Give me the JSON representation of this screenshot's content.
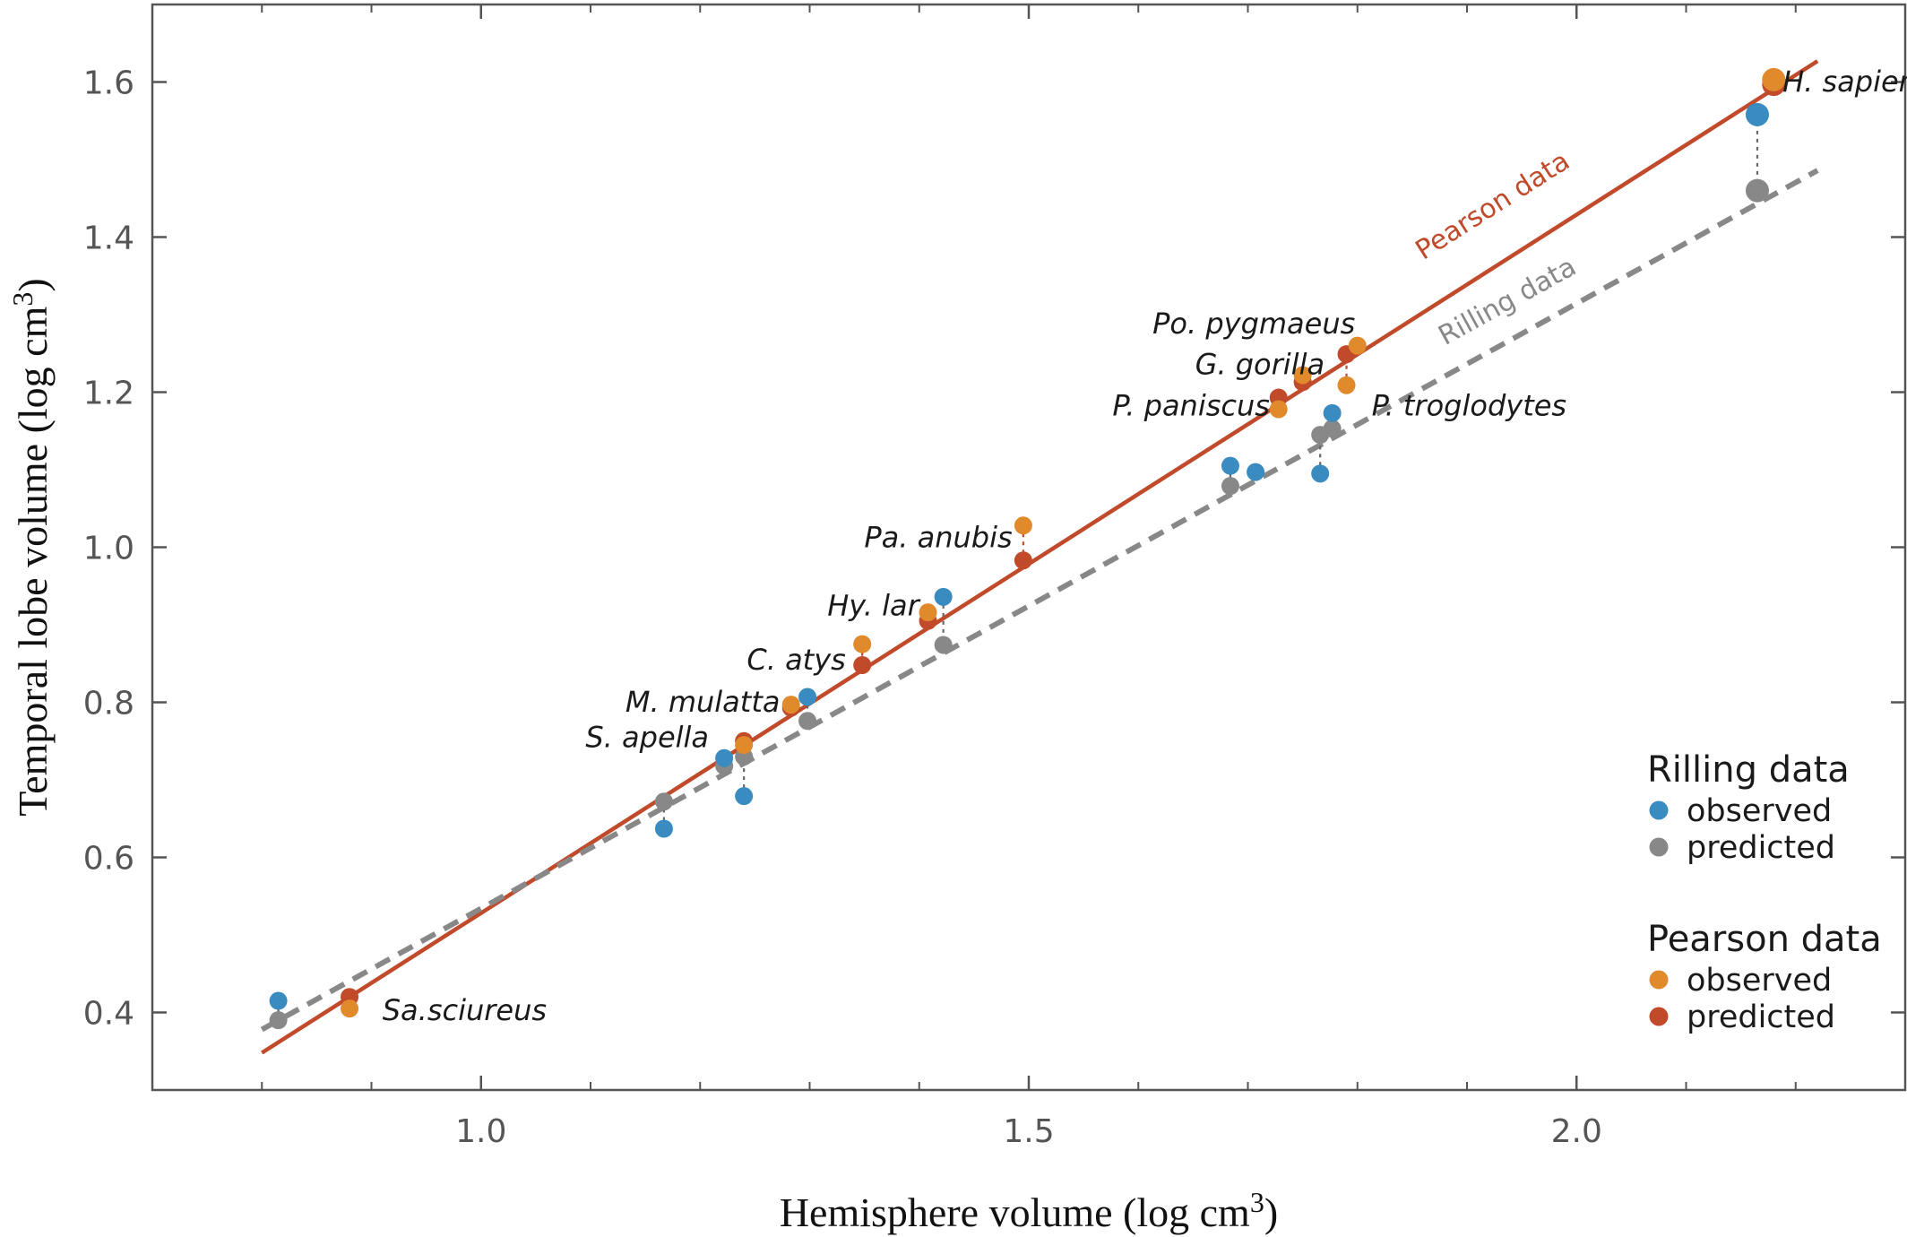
{
  "chart_data": {
    "type": "scatter",
    "xlabel": "Hemisphere volume (log cm",
    "xlabel_sup": "3",
    "xlabel_tail": ")",
    "ylabel": "Temporal lobe volume (log cm",
    "ylabel_sup": "3",
    "ylabel_tail": ")",
    "xlim": [
      0.7,
      2.3
    ],
    "ylim": [
      0.3,
      1.7
    ],
    "x_ticks": [
      {
        "value": 1.0,
        "label": "1.0"
      },
      {
        "value": 1.5,
        "label": "1.5"
      },
      {
        "value": 2.0,
        "label": "2.0"
      }
    ],
    "y_ticks": [
      {
        "value": 0.4,
        "label": "0.4"
      },
      {
        "value": 0.6,
        "label": "0.6"
      },
      {
        "value": 0.8,
        "label": "0.8"
      },
      {
        "value": 1.0,
        "label": "1.0"
      },
      {
        "value": 1.2,
        "label": "1.2"
      },
      {
        "value": 1.4,
        "label": "1.4"
      },
      {
        "value": 1.6,
        "label": "1.6"
      }
    ],
    "minor_x_ticks": [
      0.8,
      0.9,
      1.1,
      1.2,
      1.3,
      1.4,
      1.6,
      1.7,
      1.8,
      1.9,
      2.1,
      2.2
    ],
    "colors": {
      "rilling_observed": "#3a8cc0",
      "rilling_predicted": "#888888",
      "pearson_observed": "#e08a2c",
      "pearson_predicted": "#c04a2a",
      "pearson_line": "#c04a2a",
      "rilling_line": "#888888"
    },
    "fit_lines": [
      {
        "label": "Pearson data",
        "style": "solid",
        "color": "#c04a2a",
        "x": [
          0.8,
          2.22
        ],
        "y": [
          0.348,
          1.627
        ]
      },
      {
        "label": "Rilling data",
        "style": "dashed",
        "color": "#888888",
        "x": [
          0.8,
          2.22
        ],
        "y": [
          0.378,
          1.486
        ]
      }
    ],
    "series": [
      {
        "name": "observed",
        "group": "Rilling data",
        "color": "#3a8cc0",
        "points": [
          {
            "x": 0.815,
            "y": 0.415
          },
          {
            "x": 1.167,
            "y": 0.637
          },
          {
            "x": 1.222,
            "y": 0.728
          },
          {
            "x": 1.24,
            "y": 0.679
          },
          {
            "x": 1.298,
            "y": 0.807
          },
          {
            "x": 1.422,
            "y": 0.936
          },
          {
            "x": 1.684,
            "y": 1.105
          },
          {
            "x": 1.707,
            "y": 1.097
          },
          {
            "x": 1.766,
            "y": 1.095
          },
          {
            "x": 1.777,
            "y": 1.173
          },
          {
            "x": 2.165,
            "y": 1.558
          }
        ]
      },
      {
        "name": "predicted",
        "group": "Rilling data",
        "color": "#888888",
        "points": [
          {
            "x": 0.815,
            "y": 0.39
          },
          {
            "x": 1.167,
            "y": 0.672
          },
          {
            "x": 1.222,
            "y": 0.718
          },
          {
            "x": 1.24,
            "y": 0.73
          },
          {
            "x": 1.298,
            "y": 0.776
          },
          {
            "x": 1.422,
            "y": 0.874
          },
          {
            "x": 1.684,
            "y": 1.079
          },
          {
            "x": 1.766,
            "y": 1.145
          },
          {
            "x": 1.777,
            "y": 1.153
          },
          {
            "x": 2.165,
            "y": 1.46
          }
        ]
      },
      {
        "name": "observed",
        "group": "Pearson data",
        "color": "#e08a2c",
        "points": [
          {
            "x": 0.88,
            "y": 0.405
          },
          {
            "x": 1.24,
            "y": 0.745
          },
          {
            "x": 1.283,
            "y": 0.797
          },
          {
            "x": 1.348,
            "y": 0.875
          },
          {
            "x": 1.408,
            "y": 0.916
          },
          {
            "x": 1.495,
            "y": 1.028
          },
          {
            "x": 1.728,
            "y": 1.178
          },
          {
            "x": 1.75,
            "y": 1.222
          },
          {
            "x": 1.79,
            "y": 1.209
          },
          {
            "x": 1.8,
            "y": 1.26
          },
          {
            "x": 2.18,
            "y": 1.603
          }
        ]
      },
      {
        "name": "predicted",
        "group": "Pearson data",
        "color": "#c04a2a",
        "points": [
          {
            "x": 0.88,
            "y": 0.42
          },
          {
            "x": 1.24,
            "y": 0.75
          },
          {
            "x": 1.283,
            "y": 0.793
          },
          {
            "x": 1.348,
            "y": 0.848
          },
          {
            "x": 1.408,
            "y": 0.905
          },
          {
            "x": 1.495,
            "y": 0.983
          },
          {
            "x": 1.728,
            "y": 1.193
          },
          {
            "x": 1.75,
            "y": 1.213
          },
          {
            "x": 1.79,
            "y": 1.249
          },
          {
            "x": 2.18,
            "y": 1.597
          }
        ]
      }
    ],
    "species_labels": [
      {
        "text": "H. sapiens",
        "x": 2.188,
        "y": 1.588,
        "anchor": "start"
      },
      {
        "text": "Po. pygmaeus",
        "x": 1.798,
        "y": 1.276,
        "anchor": "end"
      },
      {
        "text": "G. gorilla",
        "x": 1.77,
        "y": 1.223,
        "anchor": "end"
      },
      {
        "text": "P. paniscus",
        "x": 1.72,
        "y": 1.17,
        "anchor": "end"
      },
      {
        "text": "P. troglodytes",
        "x": 1.813,
        "y": 1.17,
        "anchor": "start"
      },
      {
        "text": "Pa. anubis",
        "x": 1.485,
        "y": 1.0,
        "anchor": "end"
      },
      {
        "text": "Hy. lar",
        "x": 1.4,
        "y": 0.912,
        "anchor": "end"
      },
      {
        "text": "C. atys",
        "x": 1.333,
        "y": 0.842,
        "anchor": "end"
      },
      {
        "text": "M. mulatta",
        "x": 1.273,
        "y": 0.788,
        "anchor": "end"
      },
      {
        "text": "S. apella",
        "x": 1.208,
        "y": 0.742,
        "anchor": "end"
      },
      {
        "text": "Sa.sciureus",
        "x": 0.91,
        "y": 0.39,
        "anchor": "start"
      }
    ],
    "legend": {
      "placement": "bottom-right",
      "groups": [
        {
          "title": "Rilling data",
          "entries": [
            {
              "label": "observed",
              "color": "#3a8cc0"
            },
            {
              "label": "predicted",
              "color": "#888888"
            }
          ]
        },
        {
          "title": "Pearson data",
          "entries": [
            {
              "label": "observed",
              "color": "#e08a2c"
            },
            {
              "label": "predicted",
              "color": "#c04a2a"
            }
          ]
        }
      ]
    },
    "grid": false
  }
}
